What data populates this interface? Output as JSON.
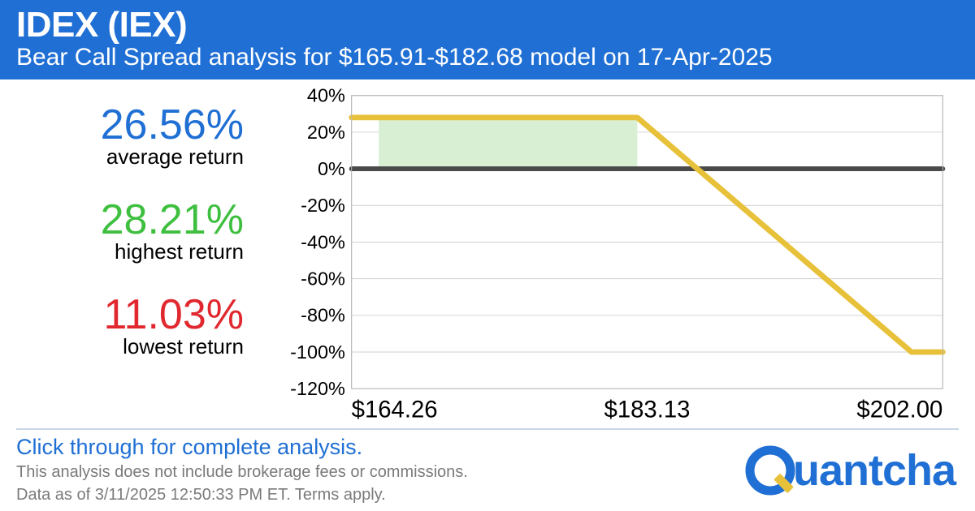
{
  "header": {
    "title": "IDEX (IEX)",
    "subtitle": "Bear Call Spread analysis for $165.91-$182.68 model on 17-Apr-2025",
    "bg_color": "#1f6fd4",
    "title_fontsize": 44,
    "subtitle_fontsize": 30
  },
  "stats": [
    {
      "value": "26.56%",
      "label": "average return",
      "color": "#1f6fd4"
    },
    {
      "value": "28.21%",
      "label": "highest return",
      "color": "#3fbf3f"
    },
    {
      "value": "11.03%",
      "label": "lowest return",
      "color": "#e0282e"
    }
  ],
  "chart": {
    "type": "line",
    "xlim": [
      164.26,
      202.0
    ],
    "ylim": [
      -120,
      40
    ],
    "ytick_step": 20,
    "yticks": [
      40,
      20,
      0,
      -20,
      -40,
      -60,
      -80,
      -100,
      -120
    ],
    "xticks": [
      164.26,
      183.13,
      202.0
    ],
    "xtick_labels": [
      "$164.26",
      "$183.13",
      "$202.00"
    ],
    "payoff_line": {
      "points": [
        {
          "x": 164.26,
          "y": 28
        },
        {
          "x": 182.5,
          "y": 28
        },
        {
          "x": 200.0,
          "y": -100
        },
        {
          "x": 202.0,
          "y": -100
        }
      ],
      "color": "#e8c13a",
      "width": 7
    },
    "zero_line": {
      "color": "#4a4a4a",
      "width": 6
    },
    "profit_fill": {
      "color": "#d8efd4",
      "x_from": 166.0,
      "x_to": 182.5,
      "y_from": 0,
      "y_to": 28
    },
    "grid_color": "#d0d0d0",
    "border_color": "#b8b8b8",
    "background_color": "#ffffff",
    "axis_label_fontsize": 24,
    "xaxis_label_fontsize": 30,
    "axis_label_color": "#000000"
  },
  "footer": {
    "cta": "Click through for complete analysis.",
    "disclaimer1": "This analysis does not include brokerage fees or commissions.",
    "disclaimer2": "Data as of 3/11/2025 12:50:33 PM ET. Terms apply.",
    "cta_color": "#1f6fd4",
    "disclaimer_color": "#7a7a7a"
  },
  "logo": {
    "text": "uantcha",
    "color": "#1f6fd4",
    "accent_color": "#e8c13a"
  }
}
